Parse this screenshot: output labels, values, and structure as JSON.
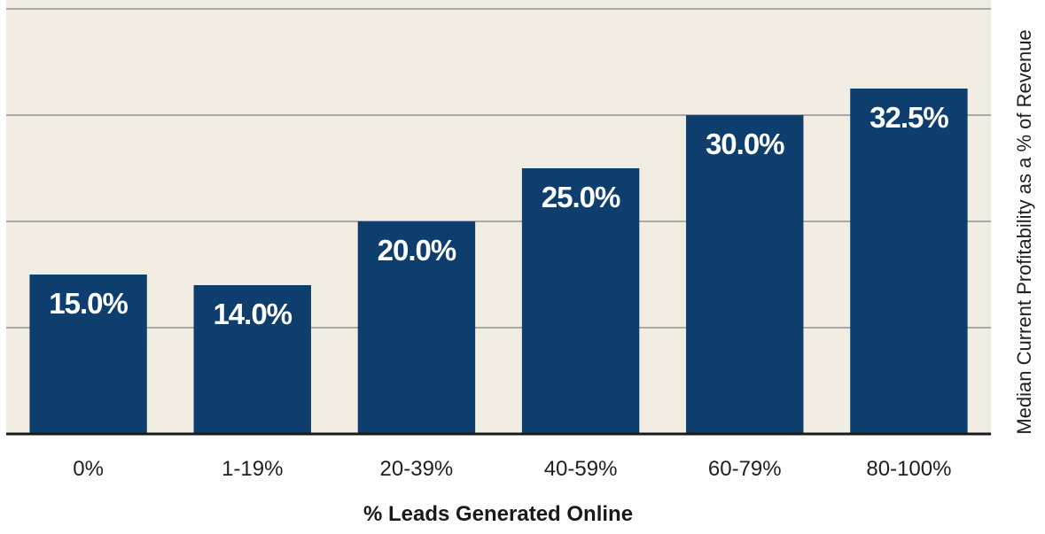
{
  "chart_data": {
    "type": "bar",
    "categories": [
      "0%",
      "1-19%",
      "20-39%",
      "40-59%",
      "60-79%",
      "80-100%"
    ],
    "values": [
      15.0,
      14.0,
      20.0,
      25.0,
      30.0,
      32.5
    ],
    "value_labels": [
      "15.0%",
      "14.0%",
      "20.0%",
      "25.0%",
      "30.0%",
      "32.5%"
    ],
    "title": "",
    "xlabel": "% Leads Generated Online",
    "ylabel": "Median Current Profitability as a % of Revenue",
    "ylim": [
      0,
      40
    ],
    "gridlines": [
      10,
      20,
      30,
      40
    ],
    "grid": true,
    "legend": "none",
    "colors": {
      "bar": "#0e3e6d",
      "plot_background": "#f2ede3",
      "gridline": "#a9a9a9",
      "baseline": "#1a1a1a",
      "bar_label": "#ffffff"
    }
  }
}
